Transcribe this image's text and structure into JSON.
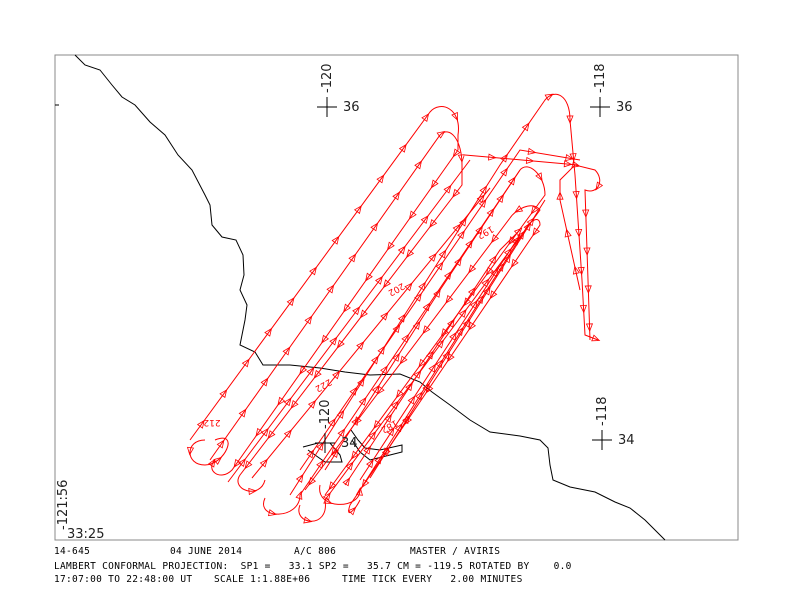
{
  "map": {
    "frame_color": "#888888",
    "track_color": "#ff0000",
    "coast_color": "#000000",
    "grid_marks": [
      {
        "lon": "-120",
        "lat": "36"
      },
      {
        "lon": "-118",
        "lat": "36"
      },
      {
        "lon": "-120",
        "lat": "34"
      },
      {
        "lon": "-118",
        "lat": "34"
      }
    ],
    "corner_lon": "-121:56",
    "corner_lat": "33:25",
    "time_labels": [
      "212",
      "222",
      "202",
      "192",
      "182"
    ]
  },
  "footer": {
    "flight_id": "14-645",
    "date": "04 JUNE 2014",
    "aircraft": "A/C 806",
    "instruments": "MASTER / AVIRIS",
    "projection": "LAMBERT CONFORMAL PROJECTION:  SP1 =   33.1 SP2 =   35.7 CM = -119.5 ROTATED BY    0.0",
    "time_range": "17:07:00 TO 22:48:00 UT",
    "scale": "SCALE 1:1.88E+06",
    "time_tick": "TIME TICK EVERY   2.00 MINUTES"
  }
}
